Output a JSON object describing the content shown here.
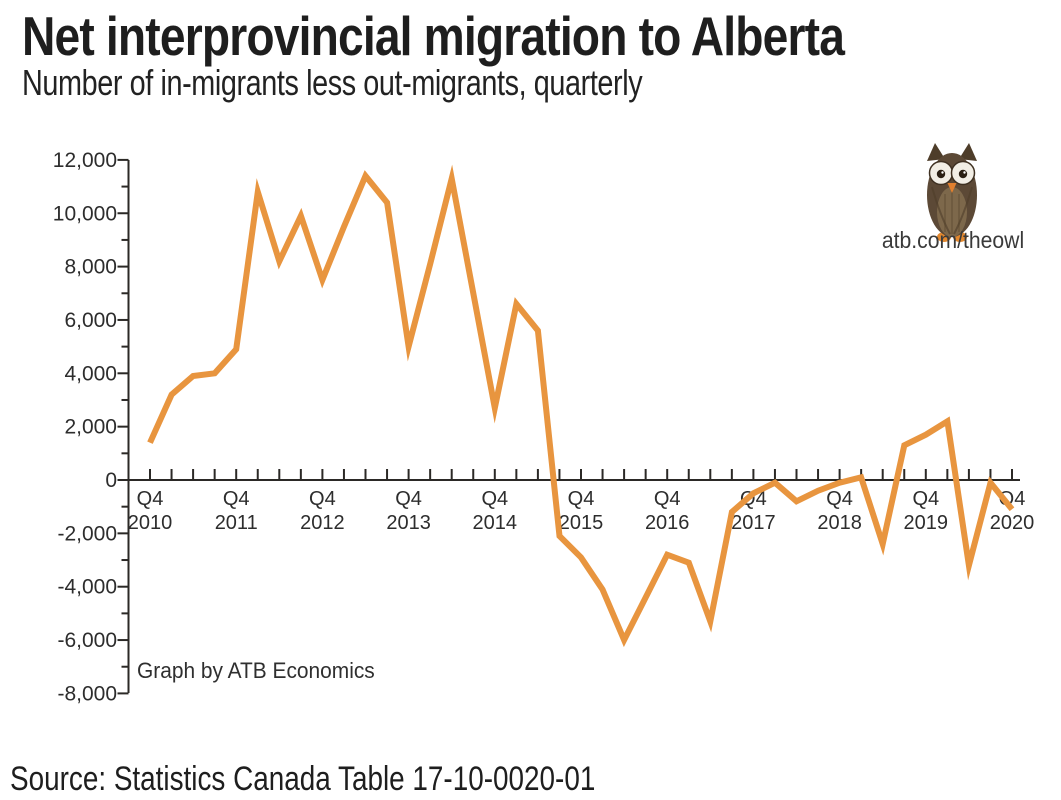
{
  "header": {
    "title": "Net interprovincial migration to Alberta",
    "subtitle": "Number of in-migrants less out-migrants, quarterly"
  },
  "branding": {
    "url": "atb.com/theowl",
    "owl_alt": "ATB owl mascot"
  },
  "chart": {
    "credit": "Graph by ATB Economics"
  },
  "footer": {
    "source": "Source: Statistics Canada Table 17-10-0020-01"
  },
  "chart_data": {
    "type": "line",
    "title": "Net interprovincial migration to Alberta",
    "subtitle": "Number of in-migrants less out-migrants, quarterly",
    "unit": "persons (net in-migrants)",
    "periods": [
      "Q4 2010",
      "Q1 2011",
      "Q2 2011",
      "Q3 2011",
      "Q4 2011",
      "Q1 2012",
      "Q2 2012",
      "Q3 2012",
      "Q4 2012",
      "Q1 2013",
      "Q2 2013",
      "Q3 2013",
      "Q4 2013",
      "Q1 2014",
      "Q2 2014",
      "Q3 2014",
      "Q4 2014",
      "Q1 2015",
      "Q2 2015",
      "Q3 2015",
      "Q4 2015",
      "Q1 2016",
      "Q2 2016",
      "Q3 2016",
      "Q4 2016",
      "Q1 2017",
      "Q2 2017",
      "Q3 2017",
      "Q4 2017",
      "Q1 2018",
      "Q2 2018",
      "Q3 2018",
      "Q4 2018",
      "Q1 2019",
      "Q2 2019",
      "Q3 2019",
      "Q4 2019",
      "Q1 2020",
      "Q2 2020",
      "Q3 2020",
      "Q4 2020"
    ],
    "values": [
      1400,
      3200,
      3900,
      4000,
      4900,
      10800,
      8200,
      9900,
      7500,
      9500,
      11400,
      10400,
      5000,
      8100,
      11300,
      7000,
      2700,
      6600,
      5600,
      -2100,
      -2900,
      -4100,
      -6000,
      -4400,
      -2800,
      -3100,
      -5300,
      -1200,
      -500,
      -100,
      -800,
      -400,
      -100,
      100,
      -2400,
      1300,
      1700,
      2200,
      -3200,
      -100,
      -1100
    ],
    "ylim": [
      -8000,
      12000
    ],
    "y_major_tick_step": 2000,
    "y_minor_tick_step": 1000,
    "y_tick_labels": [
      "-8,000",
      "-6,000",
      "-4,000",
      "-2,000",
      "0",
      "2,000",
      "4,000",
      "6,000",
      "8,000",
      "10,000",
      "12,000"
    ],
    "x_axis": {
      "tick_every": "quarter",
      "quarter_label": "Q4",
      "year_labels": [
        "2010",
        "2011",
        "2012",
        "2013",
        "2014",
        "2015",
        "2016",
        "2017",
        "2018",
        "2019",
        "2020"
      ]
    },
    "grid": false,
    "legend": false,
    "line_color": "#E8953F",
    "axis_color": "#2B2926",
    "tick_text_color": "#2d2d2d"
  }
}
